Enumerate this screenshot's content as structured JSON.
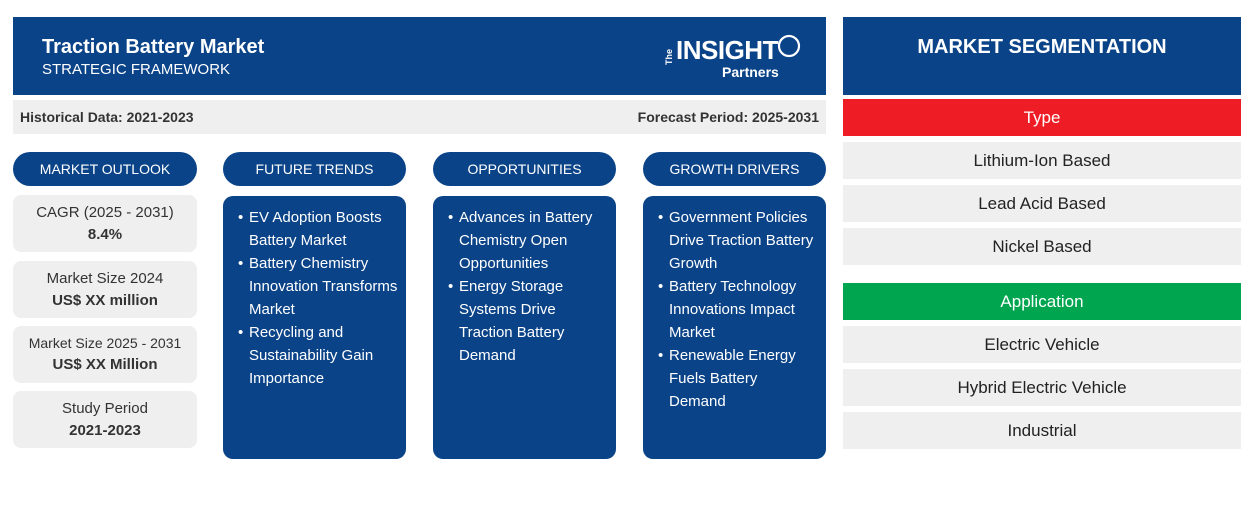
{
  "header": {
    "title": "Traction Battery Market",
    "subtitle": "STRATEGIC FRAMEWORK",
    "logo": {
      "the": "The",
      "insight": "INSIGHT",
      "partners": "Partners"
    }
  },
  "periods": {
    "historical": "Historical Data: 2021-2023",
    "forecast": "Forecast Period: 2025-2031"
  },
  "columns": {
    "market_outlook": "MARKET OUTLOOK",
    "future_trends": "FUTURE TRENDS",
    "opportunities": "OPPORTUNITIES",
    "growth_drivers": "GROWTH DRIVERS"
  },
  "outlook": [
    {
      "label": "CAGR (2025 - 2031)",
      "value": "8.4%"
    },
    {
      "label": "Market Size 2024",
      "value": "US$ XX million"
    },
    {
      "label": "Market Size 2025 - 2031",
      "value": "US$ XX Million"
    },
    {
      "label": "Study Period",
      "value": "2021-2023"
    }
  ],
  "future_trends": [
    "EV Adoption Boosts Battery Market",
    "Battery Chemistry Innovation Transforms Market",
    "Recycling and Sustainability Gain Importance"
  ],
  "opportunities": [
    "Advances in Battery Chemistry Open Opportunities",
    "Energy Storage Systems Drive Traction Battery Demand"
  ],
  "growth_drivers": [
    "Government Policies Drive Traction Battery Growth",
    "Battery Technology Innovations Impact Market",
    "Renewable Energy Fuels Battery Demand"
  ],
  "segmentation": {
    "title": "MARKET SEGMENTATION",
    "type": {
      "label": "Type",
      "color": "#ee1c25",
      "items": [
        "Lithium-Ion Based",
        "Lead Acid Based",
        "Nickel Based"
      ]
    },
    "application": {
      "label": "Application",
      "color": "#00a550",
      "items": [
        "Electric Vehicle",
        "Hybrid Electric Vehicle",
        "Industrial"
      ]
    }
  },
  "colors": {
    "primary": "#0a4388",
    "panel": "#efefef"
  },
  "icons": {
    "bullet": "bullet-icon",
    "logo": "insight-partners-logo"
  }
}
